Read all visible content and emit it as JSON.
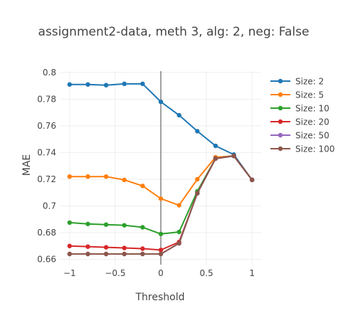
{
  "chart_data": {
    "type": "line",
    "title": "assignment2-data, meth 3, alg: 2, neg: False",
    "xlabel": "Threshold",
    "ylabel": "MAE",
    "x": [
      -1,
      -0.8,
      -0.6,
      -0.4,
      -0.2,
      0,
      0.2,
      0.4,
      0.6,
      0.8,
      1
    ],
    "xlim": [
      -1.1,
      1.1
    ],
    "ylim": [
      0.656,
      0.801
    ],
    "xticks": [
      -1,
      -0.5,
      0,
      0.5,
      1
    ],
    "xtick_labels": [
      "−1",
      "−0.5",
      "0",
      "0.5",
      "1"
    ],
    "yticks": [
      0.66,
      0.68,
      0.7,
      0.72,
      0.74,
      0.76,
      0.78,
      0.8
    ],
    "ytick_labels": [
      "0.66",
      "0.68",
      "0.7",
      "0.72",
      "0.74",
      "0.76",
      "0.78",
      "0.8"
    ],
    "grid": true,
    "zero_line_x": 0,
    "legend_position": "right",
    "series": [
      {
        "name": "Size: 2",
        "color": "#1f77b4",
        "values": [
          0.791,
          0.791,
          0.7905,
          0.7915,
          0.7915,
          0.778,
          0.768,
          0.756,
          0.745,
          0.7385,
          0.7195
        ]
      },
      {
        "name": "Size: 5",
        "color": "#ff7f0e",
        "values": [
          0.722,
          0.722,
          0.722,
          0.7195,
          0.715,
          0.7055,
          0.7005,
          0.72,
          0.7365,
          0.7375,
          0.7195
        ]
      },
      {
        "name": "Size: 10",
        "color": "#2ca02c",
        "values": [
          0.6875,
          0.6865,
          0.686,
          0.6855,
          0.684,
          0.679,
          0.6805,
          0.711,
          0.7355,
          0.7375,
          0.7195
        ]
      },
      {
        "name": "Size: 20",
        "color": "#d62728",
        "values": [
          0.67,
          0.6695,
          0.669,
          0.6685,
          0.668,
          0.667,
          0.673,
          0.7095,
          0.7355,
          0.7375,
          0.7195
        ]
      },
      {
        "name": "Size: 50",
        "color": "#9467bd",
        "values": [
          0.664,
          0.664,
          0.664,
          0.664,
          0.664,
          0.664,
          0.672,
          0.7095,
          0.7355,
          0.7375,
          0.7195
        ]
      },
      {
        "name": "Size: 100",
        "color": "#8c564b",
        "values": [
          0.664,
          0.664,
          0.664,
          0.664,
          0.664,
          0.664,
          0.672,
          0.7095,
          0.7355,
          0.7375,
          0.7195
        ]
      }
    ]
  }
}
